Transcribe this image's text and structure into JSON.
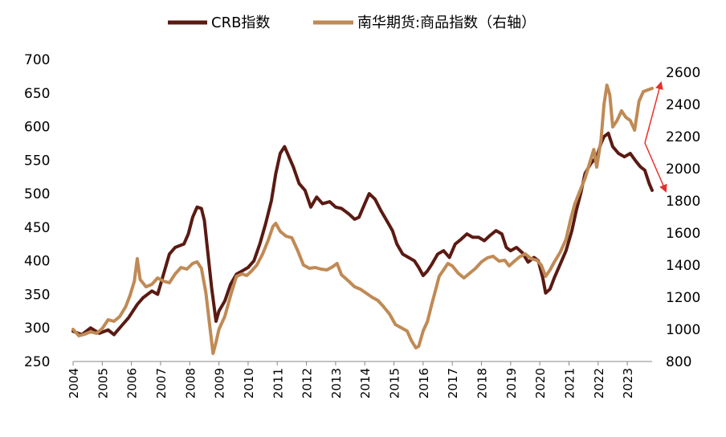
{
  "chart_data": {
    "type": "line",
    "legend_position": "top-center",
    "grid": false,
    "y_left": {
      "ticks": [
        250,
        300,
        350,
        400,
        450,
        500,
        550,
        600,
        650,
        700
      ],
      "lim": [
        250,
        700
      ]
    },
    "y_right": {
      "ticks": [
        800,
        1000,
        1200,
        1400,
        1600,
        1800,
        2000,
        2200,
        2400,
        2600
      ],
      "lim": [
        800,
        2680
      ]
    },
    "x_ticks": [
      "2004",
      "2005",
      "2006",
      "2007",
      "2008",
      "2009",
      "2010",
      "2011",
      "2012",
      "2013",
      "2014",
      "2015",
      "2016",
      "2017",
      "2018",
      "2019",
      "2020",
      "2021",
      "2022",
      "2023"
    ],
    "x_range": [
      2004.0,
      2023.85
    ],
    "series": [
      {
        "name": "CRB指数",
        "axis": "left",
        "color": "#5a1a12",
        "points": [
          [
            2004.0,
            295
          ],
          [
            2004.3,
            290
          ],
          [
            2004.6,
            300
          ],
          [
            2004.9,
            292
          ],
          [
            2005.2,
            297
          ],
          [
            2005.4,
            290
          ],
          [
            2005.7,
            305
          ],
          [
            2005.9,
            315
          ],
          [
            2006.2,
            335
          ],
          [
            2006.4,
            345
          ],
          [
            2006.7,
            355
          ],
          [
            2006.9,
            350
          ],
          [
            2007.1,
            380
          ],
          [
            2007.3,
            410
          ],
          [
            2007.5,
            420
          ],
          [
            2007.8,
            425
          ],
          [
            2007.95,
            440
          ],
          [
            2008.1,
            465
          ],
          [
            2008.25,
            480
          ],
          [
            2008.4,
            478
          ],
          [
            2008.5,
            460
          ],
          [
            2008.6,
            420
          ],
          [
            2008.75,
            360
          ],
          [
            2008.9,
            310
          ],
          [
            2009.0,
            325
          ],
          [
            2009.2,
            340
          ],
          [
            2009.4,
            365
          ],
          [
            2009.6,
            380
          ],
          [
            2009.8,
            385
          ],
          [
            2010.0,
            390
          ],
          [
            2010.2,
            400
          ],
          [
            2010.4,
            425
          ],
          [
            2010.6,
            455
          ],
          [
            2010.8,
            490
          ],
          [
            2010.95,
            530
          ],
          [
            2011.1,
            560
          ],
          [
            2011.25,
            570
          ],
          [
            2011.4,
            555
          ],
          [
            2011.55,
            540
          ],
          [
            2011.75,
            515
          ],
          [
            2011.95,
            505
          ],
          [
            2012.15,
            480
          ],
          [
            2012.35,
            495
          ],
          [
            2012.55,
            485
          ],
          [
            2012.8,
            488
          ],
          [
            2013.0,
            480
          ],
          [
            2013.2,
            478
          ],
          [
            2013.45,
            470
          ],
          [
            2013.65,
            462
          ],
          [
            2013.8,
            465
          ],
          [
            2014.0,
            485
          ],
          [
            2014.15,
            500
          ],
          [
            2014.35,
            492
          ],
          [
            2014.55,
            475
          ],
          [
            2014.75,
            460
          ],
          [
            2014.95,
            445
          ],
          [
            2015.1,
            425
          ],
          [
            2015.3,
            410
          ],
          [
            2015.5,
            405
          ],
          [
            2015.7,
            400
          ],
          [
            2015.85,
            390
          ],
          [
            2016.0,
            378
          ],
          [
            2016.15,
            385
          ],
          [
            2016.3,
            395
          ],
          [
            2016.5,
            410
          ],
          [
            2016.7,
            415
          ],
          [
            2016.9,
            405
          ],
          [
            2017.1,
            425
          ],
          [
            2017.3,
            432
          ],
          [
            2017.5,
            440
          ],
          [
            2017.7,
            435
          ],
          [
            2017.9,
            435
          ],
          [
            2018.1,
            430
          ],
          [
            2018.3,
            438
          ],
          [
            2018.5,
            445
          ],
          [
            2018.7,
            440
          ],
          [
            2018.85,
            420
          ],
          [
            2019.0,
            415
          ],
          [
            2019.2,
            420
          ],
          [
            2019.4,
            412
          ],
          [
            2019.6,
            398
          ],
          [
            2019.8,
            405
          ],
          [
            2019.95,
            400
          ],
          [
            2020.1,
            375
          ],
          [
            2020.2,
            352
          ],
          [
            2020.35,
            358
          ],
          [
            2020.5,
            375
          ],
          [
            2020.7,
            395
          ],
          [
            2020.9,
            415
          ],
          [
            2021.1,
            445
          ],
          [
            2021.25,
            475
          ],
          [
            2021.4,
            500
          ],
          [
            2021.55,
            530
          ],
          [
            2021.75,
            545
          ],
          [
            2021.95,
            555
          ],
          [
            2022.1,
            575
          ],
          [
            2022.2,
            585
          ],
          [
            2022.35,
            590
          ],
          [
            2022.5,
            570
          ],
          [
            2022.7,
            560
          ],
          [
            2022.9,
            555
          ],
          [
            2023.1,
            560
          ],
          [
            2023.3,
            548
          ],
          [
            2023.45,
            540
          ],
          [
            2023.6,
            535
          ],
          [
            2023.75,
            515
          ],
          [
            2023.85,
            505
          ]
        ]
      },
      {
        "name": "南华期货:商品指数（右轴）",
        "axis": "right",
        "color": "#c08a55",
        "points": [
          [
            2004.0,
            1000
          ],
          [
            2004.2,
            960
          ],
          [
            2004.4,
            970
          ],
          [
            2004.6,
            985
          ],
          [
            2004.8,
            975
          ],
          [
            2005.0,
            1005
          ],
          [
            2005.2,
            1060
          ],
          [
            2005.4,
            1050
          ],
          [
            2005.6,
            1080
          ],
          [
            2005.8,
            1140
          ],
          [
            2005.95,
            1210
          ],
          [
            2006.1,
            1300
          ],
          [
            2006.2,
            1440
          ],
          [
            2006.3,
            1310
          ],
          [
            2006.5,
            1265
          ],
          [
            2006.7,
            1280
          ],
          [
            2006.9,
            1320
          ],
          [
            2007.1,
            1300
          ],
          [
            2007.3,
            1290
          ],
          [
            2007.5,
            1345
          ],
          [
            2007.7,
            1385
          ],
          [
            2007.9,
            1375
          ],
          [
            2008.1,
            1410
          ],
          [
            2008.25,
            1420
          ],
          [
            2008.4,
            1380
          ],
          [
            2008.55,
            1230
          ],
          [
            2008.7,
            1000
          ],
          [
            2008.8,
            850
          ],
          [
            2008.9,
            920
          ],
          [
            2009.0,
            1000
          ],
          [
            2009.2,
            1080
          ],
          [
            2009.4,
            1210
          ],
          [
            2009.6,
            1330
          ],
          [
            2009.8,
            1345
          ],
          [
            2009.95,
            1335
          ],
          [
            2010.1,
            1360
          ],
          [
            2010.3,
            1400
          ],
          [
            2010.5,
            1470
          ],
          [
            2010.7,
            1560
          ],
          [
            2010.85,
            1640
          ],
          [
            2010.95,
            1660
          ],
          [
            2011.1,
            1610
          ],
          [
            2011.3,
            1580
          ],
          [
            2011.5,
            1570
          ],
          [
            2011.7,
            1490
          ],
          [
            2011.9,
            1400
          ],
          [
            2012.1,
            1380
          ],
          [
            2012.3,
            1385
          ],
          [
            2012.5,
            1375
          ],
          [
            2012.7,
            1370
          ],
          [
            2012.9,
            1390
          ],
          [
            2013.05,
            1410
          ],
          [
            2013.2,
            1340
          ],
          [
            2013.45,
            1300
          ],
          [
            2013.65,
            1265
          ],
          [
            2013.85,
            1250
          ],
          [
            2014.05,
            1225
          ],
          [
            2014.25,
            1200
          ],
          [
            2014.45,
            1180
          ],
          [
            2014.65,
            1140
          ],
          [
            2014.85,
            1095
          ],
          [
            2015.05,
            1030
          ],
          [
            2015.25,
            1010
          ],
          [
            2015.45,
            990
          ],
          [
            2015.6,
            930
          ],
          [
            2015.75,
            885
          ],
          [
            2015.85,
            895
          ],
          [
            2016.0,
            990
          ],
          [
            2016.15,
            1050
          ],
          [
            2016.3,
            1160
          ],
          [
            2016.45,
            1260
          ],
          [
            2016.55,
            1330
          ],
          [
            2016.7,
            1370
          ],
          [
            2016.85,
            1410
          ],
          [
            2017.0,
            1395
          ],
          [
            2017.2,
            1350
          ],
          [
            2017.4,
            1320
          ],
          [
            2017.6,
            1350
          ],
          [
            2017.8,
            1380
          ],
          [
            2018.0,
            1420
          ],
          [
            2018.2,
            1445
          ],
          [
            2018.4,
            1455
          ],
          [
            2018.6,
            1425
          ],
          [
            2018.8,
            1430
          ],
          [
            2018.95,
            1395
          ],
          [
            2019.1,
            1420
          ],
          [
            2019.3,
            1450
          ],
          [
            2019.5,
            1470
          ],
          [
            2019.7,
            1440
          ],
          [
            2019.9,
            1430
          ],
          [
            2020.05,
            1400
          ],
          [
            2020.2,
            1330
          ],
          [
            2020.35,
            1370
          ],
          [
            2020.5,
            1420
          ],
          [
            2020.7,
            1480
          ],
          [
            2020.9,
            1560
          ],
          [
            2021.05,
            1680
          ],
          [
            2021.2,
            1780
          ],
          [
            2021.35,
            1850
          ],
          [
            2021.55,
            1940
          ],
          [
            2021.75,
            2060
          ],
          [
            2021.85,
            2120
          ],
          [
            2021.95,
            2010
          ],
          [
            2022.1,
            2180
          ],
          [
            2022.2,
            2400
          ],
          [
            2022.3,
            2520
          ],
          [
            2022.4,
            2460
          ],
          [
            2022.5,
            2260
          ],
          [
            2022.65,
            2300
          ],
          [
            2022.8,
            2360
          ],
          [
            2022.95,
            2320
          ],
          [
            2023.1,
            2300
          ],
          [
            2023.25,
            2240
          ],
          [
            2023.4,
            2420
          ],
          [
            2023.55,
            2480
          ],
          [
            2023.7,
            2490
          ],
          [
            2023.85,
            2500
          ]
        ]
      }
    ]
  }
}
